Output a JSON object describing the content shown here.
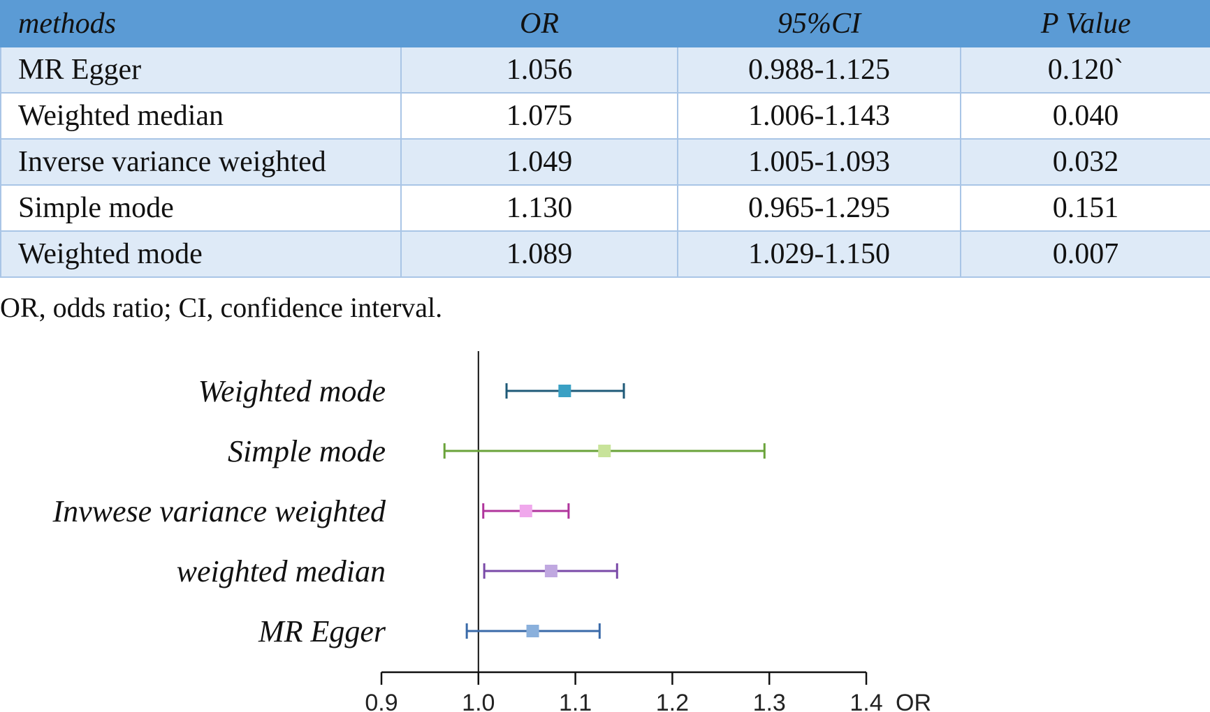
{
  "table": {
    "headers": [
      "methods",
      "OR",
      "95%CI",
      "P Value"
    ],
    "rows": [
      {
        "method": "MR Egger",
        "or": "1.056",
        "ci": "0.988-1.125",
        "p": "0.120`"
      },
      {
        "method": "Weighted median",
        "or": "1.075",
        "ci": "1.006-1.143",
        "p": "0.040"
      },
      {
        "method": "Inverse variance weighted",
        "or": "1.049",
        "ci": "1.005-1.093",
        "p": "0.032"
      },
      {
        "method": "Simple mode",
        "or": "1.130",
        "ci": "0.965-1.295",
        "p": "0.151"
      },
      {
        "method": "Weighted mode",
        "or": "1.089",
        "ci": "1.029-1.150",
        "p": "0.007"
      }
    ],
    "colors": {
      "header_bg": "#5b9bd5",
      "band_bg": "#deeaf7",
      "border": "#a9c5e6"
    }
  },
  "footnote": "OR, odds ratio; CI, confidence interval.",
  "chart_data": {
    "type": "forest",
    "xlabel": "OR",
    "xlim": [
      0.9,
      1.4
    ],
    "xticks": [
      "0.9",
      "1.0",
      "1.1",
      "1.2",
      "1.3",
      "1.4"
    ],
    "reference_line": 1.0,
    "series": [
      {
        "name": "Weighted mode",
        "or": 1.089,
        "lower": 1.029,
        "upper": 1.15,
        "line_color": "#1f5a78",
        "marker_color": "#3aa0c4"
      },
      {
        "name": "Simple mode",
        "or": 1.13,
        "lower": 0.965,
        "upper": 1.295,
        "line_color": "#6aa33a",
        "marker_color": "#c8e39a"
      },
      {
        "name": "Invwese variance weighted",
        "or": 1.049,
        "lower": 1.005,
        "upper": 1.093,
        "line_color": "#b0359c",
        "marker_color": "#f0a8ec"
      },
      {
        "name": "weighted median",
        "or": 1.075,
        "lower": 1.006,
        "upper": 1.143,
        "line_color": "#7a4aa8",
        "marker_color": "#c0a8e0"
      },
      {
        "name": "MR Egger",
        "or": 1.056,
        "lower": 0.988,
        "upper": 1.125,
        "line_color": "#3a6aa8",
        "marker_color": "#8ab0dc"
      }
    ]
  }
}
